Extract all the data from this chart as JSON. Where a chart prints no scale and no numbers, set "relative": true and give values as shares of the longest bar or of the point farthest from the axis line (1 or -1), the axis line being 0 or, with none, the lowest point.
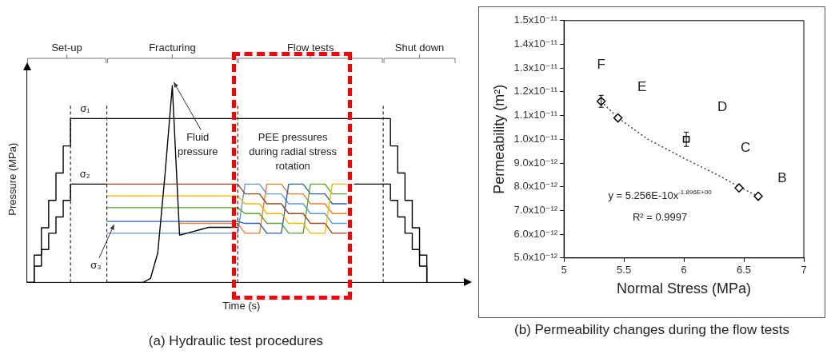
{
  "chart_data": [
    {
      "type": "line",
      "title": "(a) Hydraulic test procedures",
      "xlabel": "Time (s)",
      "ylabel": "Pressure (MPa)",
      "relative": true,
      "grid": "x",
      "line_style": "solid",
      "marker": "none",
      "categories": [
        null,
        null,
        null,
        null,
        null,
        null,
        null,
        null,
        null,
        null,
        null,
        null,
        null,
        null,
        null,
        null,
        null,
        null,
        null,
        null,
        null,
        null,
        null,
        null,
        null,
        null,
        null,
        null,
        null,
        null,
        null,
        null,
        null,
        null,
        null,
        null,
        null,
        null,
        null,
        null,
        null,
        null,
        null,
        null,
        null,
        null,
        null,
        null,
        null,
        null,
        null,
        null,
        null,
        null,
        null,
        null,
        null,
        null,
        null,
        null
      ],
      "series": [
        {
          "type": "step",
          "color": "#000000",
          "values": [
            0,
            0.139,
            0.278,
            0.417,
            0.556,
            0.694,
            0.833,
            0.833,
            0.833,
            0.833,
            0.833,
            0.833,
            0.833,
            0.833,
            0.833,
            0.833,
            0.833,
            0.833,
            0.833,
            0.833,
            0.833,
            0.833,
            0.833,
            0.833,
            0.833,
            0.833,
            0.833,
            0.833,
            0.833,
            0.833,
            0.833,
            0.833,
            0.833,
            0.833,
            0.833,
            0.833,
            0.833,
            0.833,
            0.833,
            0.833,
            0.833,
            0.833,
            0.833,
            0.833,
            0.833,
            0.833,
            0.833,
            0.833,
            0.833,
            0.833,
            0.694,
            0.556,
            0.417,
            0.278,
            0.139,
            0,
            null,
            null,
            null,
            null
          ]
        },
        {
          "type": "step",
          "color": "#000000",
          "values": [
            0,
            0.083,
            0.167,
            0.25,
            0.333,
            0.417,
            0.5,
            0.5,
            0.5,
            0.5,
            0.5,
            0.5,
            null,
            null,
            null,
            null,
            null,
            null,
            null,
            null,
            null,
            null,
            null,
            null,
            null,
            null,
            null,
            null,
            null,
            null,
            null,
            null,
            null,
            null,
            null,
            null,
            null,
            null,
            null,
            null,
            null,
            null,
            null,
            null,
            null,
            0.5,
            0.5,
            0.5,
            0.5,
            0.5,
            0.417,
            0.333,
            0.25,
            0.167,
            0.083,
            0,
            null,
            null,
            null,
            null
          ]
        },
        {
          "color": "#000000",
          "values": [
            null,
            null,
            null,
            null,
            null,
            null,
            null,
            null,
            null,
            null,
            null,
            0,
            0,
            0,
            0,
            0,
            0,
            0.02,
            0.15,
            0.55,
            1,
            0.24,
            0.25,
            0.26,
            0.27,
            0.28,
            0.28,
            0.28,
            0.28,
            0.28,
            null,
            null,
            null,
            null,
            null,
            null,
            null,
            null,
            null,
            null,
            null,
            null,
            null,
            null,
            null,
            null,
            null,
            null,
            null,
            null,
            null,
            null,
            null,
            null,
            null,
            null,
            null,
            null,
            null,
            null
          ]
        },
        {
          "color": "#9c4a1a",
          "values": [
            null,
            null,
            null,
            null,
            null,
            null,
            null,
            null,
            null,
            null,
            null,
            0.5,
            0.5,
            0.5,
            0.5,
            0.5,
            0.5,
            0.5,
            0.5,
            0.5,
            0.5,
            0.5,
            0.5,
            0.5,
            0.5,
            0.5,
            0.5,
            0.5,
            0.5,
            0.5,
            0.45,
            0.45,
            0.45,
            0.4,
            0.4,
            0.4,
            0.35,
            0.35,
            0.35,
            0.3,
            0.3,
            0.3,
            0.25,
            0.25,
            0.25,
            null,
            null,
            null,
            null,
            null,
            null,
            null,
            null,
            null,
            null,
            null,
            null,
            null,
            null,
            null
          ]
        },
        {
          "color": "#f2b705",
          "values": [
            null,
            null,
            null,
            null,
            null,
            null,
            null,
            null,
            null,
            null,
            null,
            0.44,
            0.44,
            0.44,
            0.44,
            0.44,
            0.44,
            0.44,
            0.44,
            0.44,
            0.44,
            0.44,
            0.44,
            0.44,
            0.44,
            0.44,
            0.44,
            0.44,
            0.44,
            0.44,
            0.4,
            0.4,
            0.4,
            0.35,
            0.35,
            0.35,
            0.3,
            0.3,
            0.3,
            0.25,
            0.25,
            0.25,
            0.5,
            0.5,
            0.5,
            null,
            null,
            null,
            null,
            null,
            null,
            null,
            null,
            null,
            null,
            null,
            null,
            null,
            null,
            null
          ]
        },
        {
          "color": "#5aa832",
          "values": [
            null,
            null,
            null,
            null,
            null,
            null,
            null,
            null,
            null,
            null,
            null,
            0.38,
            0.38,
            0.38,
            0.38,
            0.38,
            0.38,
            0.38,
            0.38,
            0.38,
            0.38,
            0.38,
            0.38,
            0.38,
            0.38,
            0.38,
            0.38,
            0.38,
            0.38,
            0.38,
            0.35,
            0.35,
            0.35,
            0.3,
            0.3,
            0.3,
            0.25,
            0.25,
            0.25,
            0.5,
            0.5,
            0.5,
            0.45,
            0.45,
            0.45,
            null,
            null,
            null,
            null,
            null,
            null,
            null,
            null,
            null,
            null,
            null,
            null,
            null,
            null,
            null
          ]
        },
        {
          "color": "#2f5fb3",
          "values": [
            null,
            null,
            null,
            null,
            null,
            null,
            null,
            null,
            null,
            null,
            null,
            0.31,
            0.31,
            0.31,
            0.31,
            0.31,
            0.31,
            0.31,
            0.31,
            0.31,
            0.31,
            0.31,
            0.31,
            0.31,
            0.31,
            0.31,
            0.31,
            0.31,
            0.31,
            0.31,
            0.3,
            0.3,
            0.3,
            0.25,
            0.25,
            0.25,
            0.5,
            0.5,
            0.5,
            0.45,
            0.45,
            0.45,
            0.4,
            0.4,
            0.4,
            null,
            null,
            null,
            null,
            null,
            null,
            null,
            null,
            null,
            null,
            null,
            null,
            null,
            null,
            null
          ]
        },
        {
          "color": "#ed7d31",
          "values": [
            null,
            null,
            null,
            null,
            null,
            null,
            null,
            null,
            null,
            null,
            null,
            null,
            null,
            null,
            null,
            null,
            null,
            null,
            null,
            null,
            null,
            0.3,
            0.3,
            0.3,
            0.3,
            0.3,
            0.3,
            0.3,
            0.3,
            0.3,
            0.25,
            0.25,
            0.25,
            0.5,
            0.5,
            0.5,
            0.45,
            0.45,
            0.45,
            0.4,
            0.4,
            0.4,
            0.35,
            0.35,
            0.35,
            null,
            null,
            null,
            null,
            null,
            null,
            null,
            null,
            null,
            null,
            null,
            null,
            null,
            null,
            null
          ]
        },
        {
          "color": "#5b9bd5",
          "values": [
            null,
            null,
            null,
            null,
            null,
            null,
            null,
            null,
            null,
            null,
            null,
            0.25,
            0.25,
            0.25,
            0.25,
            0.25,
            0.25,
            0.25,
            0.25,
            0.25,
            0.25,
            0.25,
            0.25,
            0.25,
            0.25,
            0.25,
            0.25,
            0.25,
            0.25,
            0.25,
            0.5,
            0.5,
            0.5,
            0.45,
            0.45,
            0.45,
            0.4,
            0.4,
            0.4,
            0.35,
            0.35,
            0.35,
            0.3,
            0.3,
            0.3,
            null,
            null,
            null,
            null,
            null,
            null,
            null,
            null,
            null,
            null,
            null,
            null,
            null,
            null,
            null
          ]
        }
      ],
      "annotations": [
        "Set-up",
        "Fracturing",
        "Flow tests",
        "Shut down",
        {
          "text": "σ₁",
          "y": 0.833
        },
        {
          "text": "σ₂",
          "y": 0.5
        },
        "σ₃",
        "Fluid pressure",
        "PEE pressures during radial stress rotation"
      ]
    },
    {
      "type": "scatter",
      "title": "(b) Permeability changes during the flow tests",
      "xlabel": "Normal Stress (MPa)",
      "ylabel": "Permeability (m²)",
      "xlim": [
        5,
        7
      ],
      "xticks": [
        5,
        5.5,
        6,
        6.5,
        7
      ],
      "ylim": [
        5e-12,
        1.5e-11
      ],
      "yticks": [
        {
          "value": 5e-12,
          "label": "5.0x10⁻¹²"
        },
        {
          "value": 6e-12,
          "label": "6.0x10⁻¹²"
        },
        {
          "value": 7e-12,
          "label": "7.0x10⁻¹²"
        },
        {
          "value": 8e-12,
          "label": "8.0x10⁻¹²"
        },
        {
          "value": 9e-12,
          "label": "9.0x10⁻¹²"
        },
        {
          "value": 1e-11,
          "label": "1.0x10⁻¹¹"
        },
        {
          "value": 1.1e-11,
          "label": "1.1x10⁻¹¹"
        },
        {
          "value": 1.2e-11,
          "label": "1.2x10⁻¹¹"
        },
        {
          "value": 1.3e-11,
          "label": "1.3x10⁻¹¹"
        },
        {
          "value": 1.4e-11,
          "label": "1.4x10⁻¹¹"
        },
        {
          "value": 1.5e-11,
          "label": "1.5x10⁻¹¹"
        }
      ],
      "series": [
        {
          "marker": "diamond",
          "color": "#000000",
          "x": [
            5.31,
            5.45,
            6.46,
            6.62
          ],
          "values": [
            1.16e-11,
            1.09e-11,
            7.95e-12,
            7.6e-12
          ],
          "errors": [
            2.5e-13,
            null,
            null,
            null
          ]
        },
        {
          "marker": "square",
          "color": "#000000",
          "x": [
            6.02
          ],
          "values": [
            1e-11
          ],
          "errors": [
            3e-13
          ]
        },
        {
          "type": "line",
          "line_style": "dotted",
          "marker": "none",
          "color": "#333333",
          "x": [
            5.31,
            5.45,
            5.7,
            6.0,
            6.3,
            6.46,
            6.62
          ],
          "values": [
            1.16e-11,
            1.09e-11,
            1e-11,
            9.2e-12,
            8.45e-12,
            8e-12,
            7.6e-12
          ]
        }
      ],
      "annotations": [
        {
          "text": "F",
          "x": 5.31,
          "y": 1.16e-11
        },
        {
          "text": "E",
          "x": 5.45,
          "y": 1.09e-11
        },
        {
          "text": "D",
          "x": 6.02,
          "y": 1e-11
        },
        {
          "text": "C",
          "x": 6.46,
          "y": 7.95e-12
        },
        {
          "text": "B",
          "x": 6.62,
          "y": 7.6e-12
        },
        "y = 5.256E-10x$^{-1.896E+00}$",
        "R² = 0.9997"
      ]
    }
  ]
}
